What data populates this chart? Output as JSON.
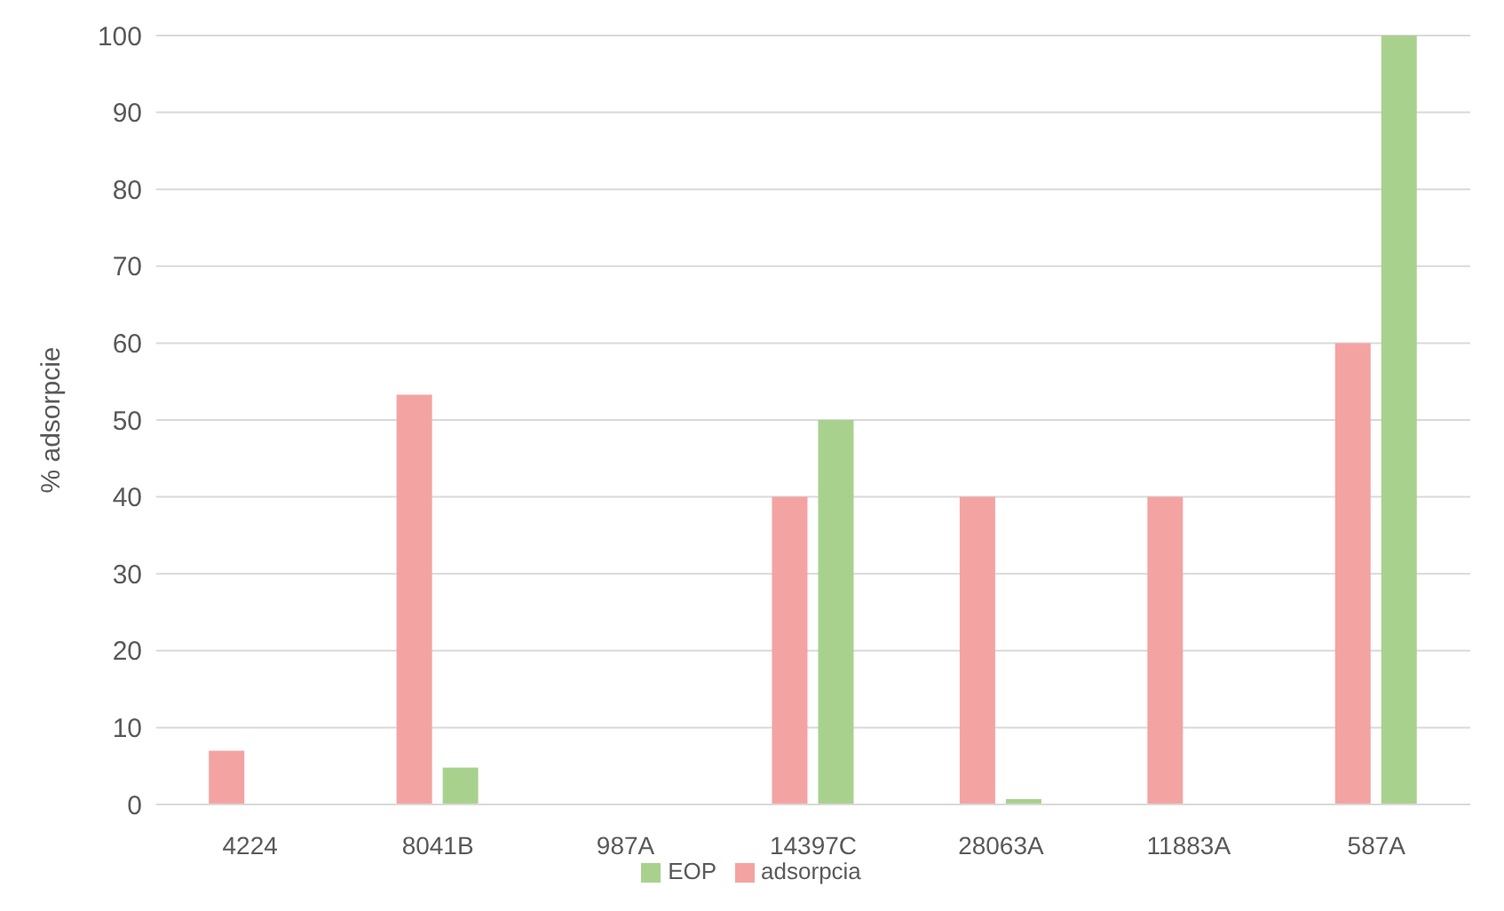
{
  "chart_data": {
    "type": "bar",
    "ylabel": "% adsorpcie",
    "categories": [
      "4224",
      "8041B",
      "987A",
      "14397C",
      "28063A",
      "11883A",
      "587A"
    ],
    "series": [
      {
        "name": "adsorpcia",
        "color": "#f4a3a3",
        "values": [
          7,
          53.3,
          0,
          40,
          40,
          40,
          60
        ]
      },
      {
        "name": "EOP",
        "color": "#a9d18e",
        "values": [
          0,
          4.8,
          0,
          50,
          0.7,
          0,
          100
        ]
      }
    ],
    "ylim": [
      0,
      100
    ],
    "yticks": [
      0,
      10,
      20,
      30,
      40,
      50,
      60,
      70,
      80,
      90,
      100
    ],
    "grid": "y",
    "legend": "bottom"
  }
}
